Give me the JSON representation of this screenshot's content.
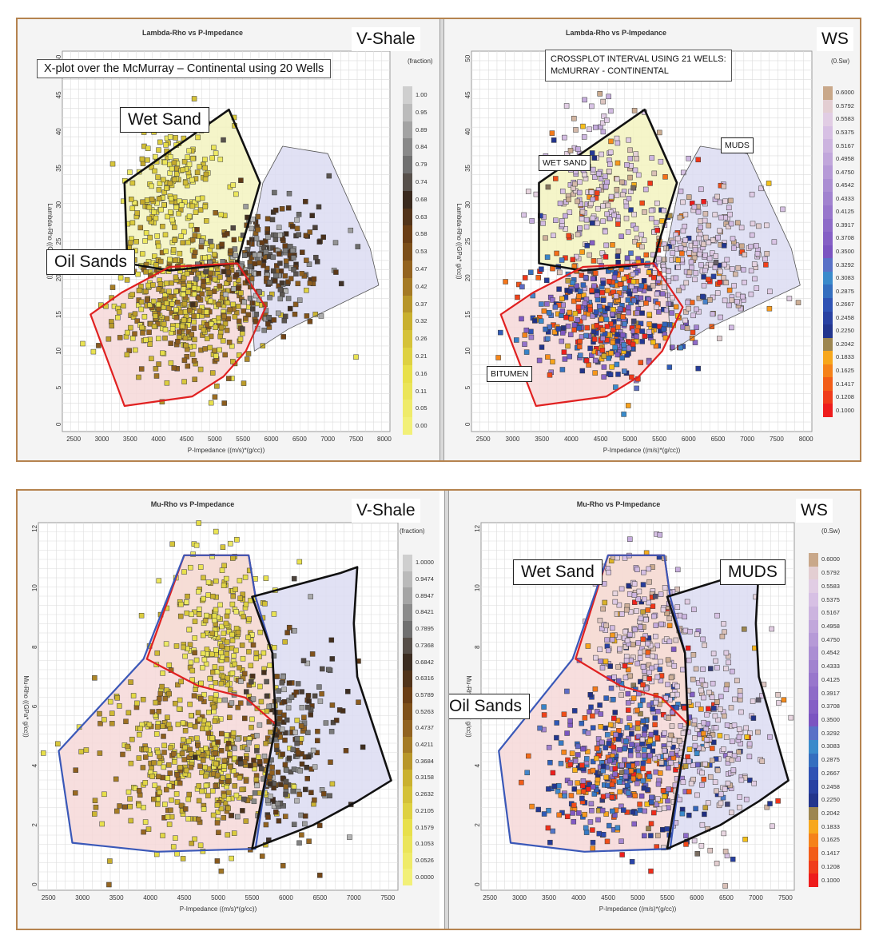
{
  "panels": [
    {
      "id": "tl",
      "title": "Lambda-Rho vs P-Impedance",
      "tag": "V-Shale",
      "note": "X-plot over the McMurray – Continental using 20 Wells",
      "xlabel": "P-Impedance ((m/s)*(g/cc))",
      "ylabel": "Lambda-Rho ((GPa* g/cc))",
      "colorbar_header": "(fraction)",
      "colorbar_ticks": [
        "1.00",
        "0.95",
        "0.89",
        "0.84",
        "0.79",
        "0.74",
        "0.68",
        "0.63",
        "0.58",
        "0.53",
        "0.47",
        "0.42",
        "0.37",
        "0.32",
        "0.26",
        "0.21",
        "0.16",
        "0.11",
        "0.05",
        "0.00"
      ],
      "region_labels": [
        {
          "text": "Wet Sand"
        },
        {
          "text": "Oil Sands"
        }
      ]
    },
    {
      "id": "tr",
      "title": "Lambda-Rho vs P-Impedance",
      "tag": "WS",
      "note_lines": [
        "CROSSPLOT INTERVAL USING  21 WELLS:",
        "McMURRAY - CONTINENTAL"
      ],
      "xlabel": "P-Impedance ((m/s)*(g/cc))",
      "ylabel": "Lambda-Rho ((GPa* g/cc))",
      "colorbar_header": "(0.Sw)",
      "colorbar_ticks": [
        "0.6000",
        "0.5792",
        "0.5583",
        "0.5375",
        "0.5167",
        "0.4958",
        "0.4750",
        "0.4542",
        "0.4333",
        "0.4125",
        "0.3917",
        "0.3708",
        "0.3500",
        "0.3292",
        "0.3083",
        "0.2875",
        "0.2667",
        "0.2458",
        "0.2250",
        "0.2042",
        "0.1833",
        "0.1625",
        "0.1417",
        "0.1208",
        "0.1000"
      ],
      "region_labels": [
        {
          "text": "WET SAND"
        },
        {
          "text": "MUDS"
        },
        {
          "text": "BITUMEN"
        }
      ]
    },
    {
      "id": "bl",
      "title": "Mu-Rho vs P-Impedance",
      "tag": "V-Shale",
      "xlabel": "P-Impedance ((m/s)*(g/cc))",
      "ylabel": "Mu-Rho ((GPa* g/cc))",
      "colorbar_header": "(fraction)",
      "colorbar_ticks": [
        "1.0000",
        "0.9474",
        "0.8947",
        "0.8421",
        "0.7895",
        "0.7368",
        "0.6842",
        "0.6316",
        "0.5789",
        "0.5263",
        "0.4737",
        "0.4211",
        "0.3684",
        "0.3158",
        "0.2632",
        "0.2105",
        "0.1579",
        "0.1053",
        "0.0526",
        "0.0000"
      ],
      "region_labels": []
    },
    {
      "id": "br",
      "title": "Mu-Rho vs P-Impedance",
      "tag": "WS",
      "xlabel": "P-Impedance ((m/s)*(g/cc))",
      "ylabel": "Mu-Rho ((GPa* g/cc))",
      "colorbar_header": "(0.Sw)",
      "colorbar_ticks": [
        "0.6000",
        "0.5792",
        "0.5583",
        "0.5375",
        "0.5167",
        "0.4958",
        "0.4750",
        "0.4542",
        "0.4333",
        "0.4125",
        "0.3917",
        "0.3708",
        "0.3500",
        "0.3292",
        "0.3083",
        "0.2875",
        "0.2667",
        "0.2458",
        "0.2250",
        "0.2042",
        "0.1833",
        "0.1625",
        "0.1417",
        "0.1208",
        "0.1000"
      ],
      "region_labels": [
        {
          "text": "Wet Sand"
        },
        {
          "text": "MUDS"
        },
        {
          "text": "Oil Sands"
        }
      ]
    }
  ],
  "colors": {
    "wet_sand_fill": "#f3f3c0",
    "oil_sand_fill": "#f6d8d8",
    "muds_fill": "#dcdcf2",
    "red_boundary": "#e02020",
    "blue_boundary": "#3a58b8",
    "black_boundary": "#111111"
  },
  "chart_data": [
    {
      "type": "scatter",
      "title": "Lambda-Rho vs P-Impedance",
      "xlabel": "P-Impedance ((m/s)*(g/cc))",
      "ylabel": "Lambda-Rho ((GPa* g/cc))",
      "xlim": [
        2300,
        8100
      ],
      "ylim": [
        -1,
        51
      ],
      "xticks": [
        2500,
        3000,
        3500,
        4000,
        4500,
        5000,
        5500,
        6000,
        6500,
        7000,
        7500,
        8000
      ],
      "yticks": [
        0,
        5,
        10,
        15,
        20,
        25,
        30,
        35,
        40,
        45,
        50
      ],
      "color_by": "V-Shale (fraction)",
      "polygons": [
        {
          "name": "Wet Sand",
          "vertices": [
            [
              3400,
              33
            ],
            [
              5250,
              43
            ],
            [
              5800,
              33
            ],
            [
              5500,
              25
            ],
            [
              5400,
              22
            ],
            [
              4200,
              21
            ],
            [
              3450,
              22
            ]
          ]
        },
        {
          "name": "Oil Sands",
          "vertices": [
            [
              2800,
              15
            ],
            [
              3350,
              18
            ],
            [
              4200,
              21.5
            ],
            [
              5400,
              22
            ],
            [
              5900,
              16
            ],
            [
              5550,
              10
            ],
            [
              5150,
              6.5
            ],
            [
              4600,
              3.8
            ],
            [
              3400,
              2.5
            ]
          ]
        },
        {
          "name": "Muds",
          "vertices": [
            [
              5600,
              23
            ],
            [
              5850,
              33
            ],
            [
              6200,
              38
            ],
            [
              7000,
              37
            ],
            [
              7750,
              24
            ],
            [
              7900,
              19
            ],
            [
              6300,
              13
            ],
            [
              5700,
              10
            ]
          ]
        }
      ],
      "clusters": [
        {
          "name": "Wet Sand cluster",
          "center": [
            4300,
            32
          ],
          "spread": [
            450,
            5
          ],
          "n": 220,
          "v": [
            0.05,
            0.35
          ]
        },
        {
          "name": "Oil Sands cluster",
          "center": [
            4500,
            16
          ],
          "spread": [
            650,
            4.3
          ],
          "n": 480,
          "v": [
            0.1,
            0.5
          ]
        },
        {
          "name": "Muds cluster",
          "center": [
            5950,
            22
          ],
          "spread": [
            500,
            4.5
          ],
          "n": 260,
          "v": [
            0.45,
            0.95
          ]
        }
      ]
    },
    {
      "type": "scatter",
      "title": "Lambda-Rho vs P-Impedance",
      "xlabel": "P-Impedance ((m/s)*(g/cc))",
      "ylabel": "Lambda-Rho ((GPa* g/cc))",
      "xlim": [
        2300,
        8100
      ],
      "ylim": [
        -1,
        51
      ],
      "xticks": [
        2500,
        3000,
        3500,
        4000,
        4500,
        5000,
        5500,
        6000,
        6500,
        7000,
        7500,
        8000
      ],
      "yticks": [
        0,
        5,
        10,
        15,
        20,
        25,
        30,
        35,
        40,
        45,
        50
      ],
      "color_by": "WS (0.Sw)",
      "polygons": [
        {
          "name": "Wet Sand",
          "vertices": [
            [
              3450,
              33
            ],
            [
              5250,
              43
            ],
            [
              5800,
              33
            ],
            [
              5500,
              25
            ],
            [
              5400,
              22
            ],
            [
              4200,
              21
            ],
            [
              3450,
              22
            ]
          ]
        },
        {
          "name": "Bitumen",
          "vertices": [
            [
              2800,
              15
            ],
            [
              3350,
              18
            ],
            [
              4200,
              21.5
            ],
            [
              5400,
              22
            ],
            [
              5900,
              16
            ],
            [
              5550,
              10
            ],
            [
              5150,
              6.5
            ],
            [
              4600,
              3.8
            ],
            [
              3400,
              2.5
            ]
          ]
        },
        {
          "name": "Muds",
          "vertices": [
            [
              5600,
              23
            ],
            [
              5850,
              33
            ],
            [
              6200,
              38
            ],
            [
              7000,
              37
            ],
            [
              7750,
              24
            ],
            [
              7900,
              19
            ],
            [
              6300,
              13
            ],
            [
              5700,
              10
            ]
          ]
        }
      ],
      "clusters": [
        {
          "name": "Wet Sand cluster",
          "center": [
            4400,
            32
          ],
          "spread": [
            450,
            5
          ],
          "n": 220,
          "v": [
            0.5,
            0.6
          ]
        },
        {
          "name": "Bitumen cluster",
          "center": [
            4600,
            15
          ],
          "spread": [
            650,
            4.3
          ],
          "n": 480,
          "v": [
            0.1,
            0.45
          ]
        },
        {
          "name": "Muds cluster",
          "center": [
            6200,
            23
          ],
          "spread": [
            550,
            5
          ],
          "n": 280,
          "v": [
            0.52,
            0.6
          ]
        }
      ]
    },
    {
      "type": "scatter",
      "title": "Mu-Rho vs P-Impedance",
      "xlabel": "P-Impedance ((m/s)*(g/cc))",
      "ylabel": "Mu-Rho ((GPa* g/cc))",
      "xlim": [
        2350,
        7650
      ],
      "ylim": [
        -0.2,
        12.2
      ],
      "xticks": [
        2500,
        3000,
        3500,
        4000,
        4500,
        5000,
        5500,
        6000,
        6500,
        7000,
        7500
      ],
      "yticks": [
        0,
        2,
        4,
        6,
        8,
        10,
        12
      ],
      "color_by": "V-Shale (fraction)",
      "polygons": [
        {
          "name": "Wet Sand",
          "vertices": [
            [
              4500,
              11.1
            ],
            [
              5450,
              11.1
            ],
            [
              5550,
              9.7
            ],
            [
              5800,
              7.8
            ],
            [
              5850,
              5.4
            ],
            [
              5400,
              6.3
            ],
            [
              4700,
              6.7
            ],
            [
              3950,
              7.6
            ]
          ]
        },
        {
          "name": "Oil Sands",
          "vertices": [
            [
              2650,
              4.5
            ],
            [
              3900,
              7.6
            ],
            [
              4500,
              11.1
            ],
            [
              5450,
              11.1
            ],
            [
              5550,
              9.7
            ],
            [
              5800,
              7.8
            ],
            [
              5850,
              5.4
            ],
            [
              5700,
              3.5
            ],
            [
              5550,
              1.2
            ],
            [
              4100,
              1.1
            ],
            [
              2850,
              1.4
            ]
          ]
        },
        {
          "name": "Muds",
          "vertices": [
            [
              5500,
              9.7
            ],
            [
              6800,
              10.5
            ],
            [
              7050,
              10.7
            ],
            [
              7000,
              8.8
            ],
            [
              7050,
              7.0
            ],
            [
              7550,
              3.5
            ],
            [
              7050,
              2.8
            ],
            [
              6400,
              2.0
            ],
            [
              5500,
              1.2
            ],
            [
              5850,
              5.4
            ],
            [
              5800,
              7.8
            ]
          ]
        }
      ],
      "clusters": [
        {
          "name": "Wet Sand cluster",
          "center": [
            5050,
            8.5
          ],
          "spread": [
            380,
            1.4
          ],
          "n": 220,
          "v": [
            0.05,
            0.35
          ]
        },
        {
          "name": "Oil Sands cluster",
          "center": [
            4700,
            4.2
          ],
          "spread": [
            700,
            1.4
          ],
          "n": 480,
          "v": [
            0.1,
            0.5
          ]
        },
        {
          "name": "Muds cluster",
          "center": [
            6000,
            4.6
          ],
          "spread": [
            420,
            1.7
          ],
          "n": 240,
          "v": [
            0.45,
            0.95
          ]
        }
      ]
    },
    {
      "type": "scatter",
      "title": "Mu-Rho vs P-Impedance",
      "xlabel": "P-Impedance ((m/s)*(g/cc))",
      "ylabel": "Mu-Rho ((GPa* g/cc))",
      "xlim": [
        2350,
        7650
      ],
      "ylim": [
        -0.2,
        12.2
      ],
      "xticks": [
        2500,
        3000,
        3500,
        4000,
        4500,
        5000,
        5500,
        6000,
        6500,
        7000,
        7500
      ],
      "yticks": [
        0,
        2,
        4,
        6,
        8,
        10,
        12
      ],
      "color_by": "WS (0.Sw)",
      "polygons": [
        {
          "name": "Wet Sand",
          "vertices": [
            [
              4500,
              11.1
            ],
            [
              5450,
              11.1
            ],
            [
              5550,
              9.7
            ],
            [
              5800,
              7.8
            ],
            [
              5850,
              5.4
            ],
            [
              5400,
              6.3
            ],
            [
              4700,
              6.7
            ],
            [
              3950,
              7.6
            ]
          ]
        },
        {
          "name": "Oil Sands",
          "vertices": [
            [
              2650,
              4.5
            ],
            [
              3900,
              7.6
            ],
            [
              4500,
              11.1
            ],
            [
              5450,
              11.1
            ],
            [
              5550,
              9.7
            ],
            [
              5800,
              7.8
            ],
            [
              5850,
              5.4
            ],
            [
              5700,
              3.5
            ],
            [
              5550,
              1.2
            ],
            [
              4100,
              1.1
            ],
            [
              2850,
              1.4
            ]
          ]
        },
        {
          "name": "Muds",
          "vertices": [
            [
              5500,
              9.7
            ],
            [
              6800,
              10.5
            ],
            [
              7050,
              10.7
            ],
            [
              7000,
              8.8
            ],
            [
              7050,
              7.0
            ],
            [
              7550,
              3.5
            ],
            [
              7050,
              2.8
            ],
            [
              6400,
              2.0
            ],
            [
              5500,
              1.2
            ],
            [
              5850,
              5.4
            ],
            [
              5800,
              7.8
            ]
          ]
        }
      ],
      "clusters": [
        {
          "name": "Wet Sand cluster",
          "center": [
            5050,
            8.5
          ],
          "spread": [
            380,
            1.4
          ],
          "n": 220,
          "v": [
            0.5,
            0.6
          ]
        },
        {
          "name": "Oil Sands cluster",
          "center": [
            4800,
            4.2
          ],
          "spread": [
            700,
            1.4
          ],
          "n": 480,
          "v": [
            0.1,
            0.45
          ]
        },
        {
          "name": "Muds cluster",
          "center": [
            6200,
            4.8
          ],
          "spread": [
            450,
            1.7
          ],
          "n": 250,
          "v": [
            0.52,
            0.6
          ]
        }
      ]
    }
  ]
}
